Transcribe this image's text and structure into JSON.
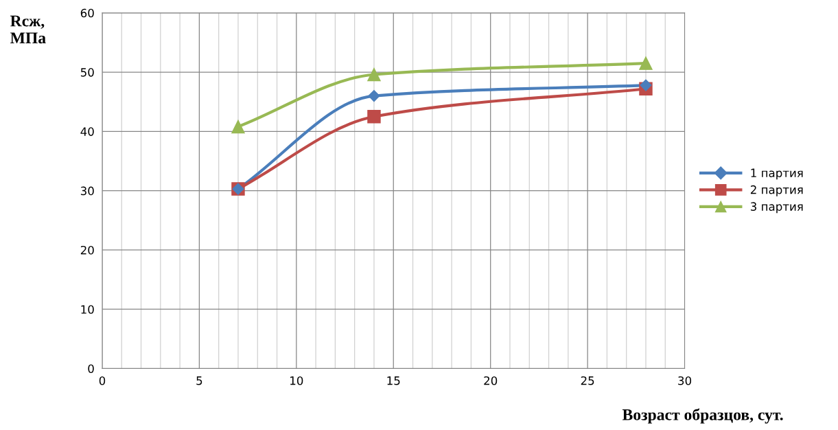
{
  "chart_data": {
    "type": "line",
    "xlabel": "Возраст образцов, сут.",
    "ylabel": "Rсж,\nМПа",
    "xlim": [
      0,
      30
    ],
    "ylim": [
      0,
      60
    ],
    "xticks": [
      0,
      {
        "value": 1,
        "label": null
      },
      {
        "value": 2,
        "label": null
      },
      {
        "value": 3,
        "label": null
      },
      {
        "value": 4,
        "label": null
      },
      5,
      {
        "value": 6,
        "label": null
      },
      {
        "value": 7,
        "label": null
      },
      {
        "value": 8,
        "label": null
      },
      {
        "value": 9,
        "label": null
      },
      10,
      {
        "value": 11,
        "label": null
      },
      {
        "value": 12,
        "label": null
      },
      {
        "value": 13,
        "label": null
      },
      {
        "value": 14,
        "label": null
      },
      15,
      {
        "value": 16,
        "label": null
      },
      {
        "value": 17,
        "label": null
      },
      {
        "value": 18,
        "label": null
      },
      {
        "value": 19,
        "label": null
      },
      20,
      {
        "value": 21,
        "label": null
      },
      {
        "value": 22,
        "label": null
      },
      {
        "value": 23,
        "label": null
      },
      {
        "value": 24,
        "label": null
      },
      25,
      {
        "value": 26,
        "label": null
      },
      {
        "value": 27,
        "label": null
      },
      {
        "value": 28,
        "label": null
      },
      {
        "value": 29,
        "label": null
      },
      30
    ],
    "yticks": [
      0,
      10,
      20,
      30,
      40,
      50,
      60
    ],
    "grid": true,
    "legend": "right",
    "x": [
      7,
      14,
      28
    ],
    "series": [
      {
        "name": "1 партия",
        "color": "#4a7ebb",
        "marker": "diamond",
        "values": [
          30.3,
          46.0,
          47.8
        ]
      },
      {
        "name": "2 партия",
        "color": "#be4b48",
        "marker": "square",
        "values": [
          30.3,
          42.5,
          47.2
        ]
      },
      {
        "name": "3 партия",
        "color": "#98b954",
        "marker": "triangle",
        "values": [
          40.8,
          49.6,
          51.5
        ]
      }
    ]
  }
}
